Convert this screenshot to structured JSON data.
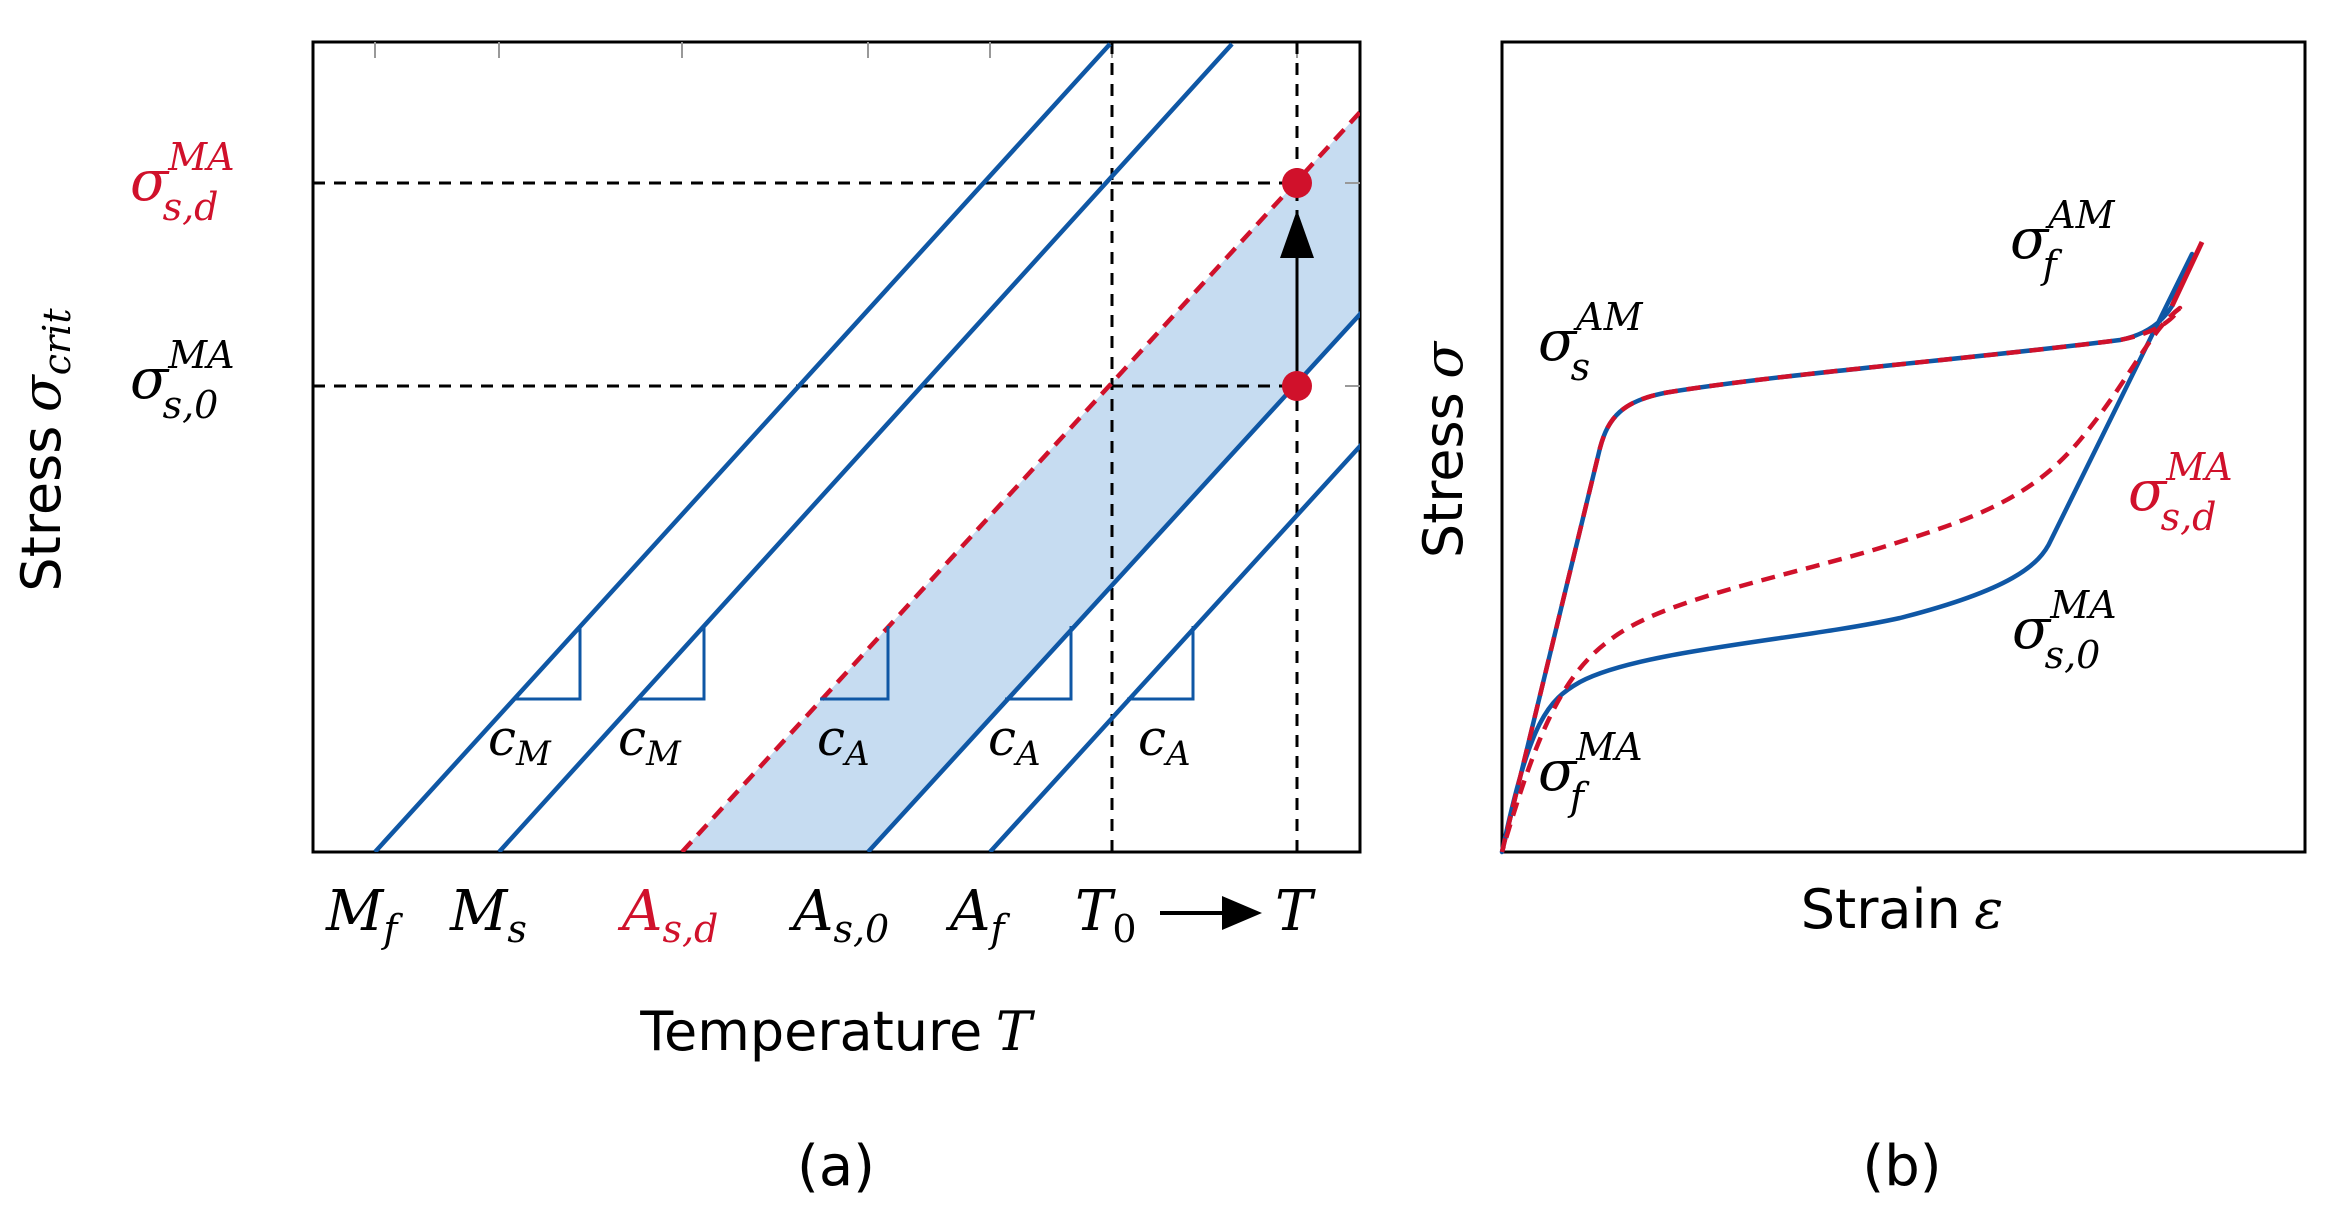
{
  "colors": {
    "blue": "#0f57a5",
    "red": "#d0112b",
    "fill": "#c6dcf1",
    "black": "#000000"
  },
  "panel_a": {
    "caption": "(a)",
    "xlabel_text": "Temperature",
    "xlabel_symbol": "T",
    "ylabel_text": "Stress",
    "ylabel_symbol": "σ",
    "ylabel_sub": "crit",
    "x_ticks": [
      {
        "base": "M",
        "sub": "f",
        "sup": "",
        "color": "black"
      },
      {
        "base": "M",
        "sub": "s",
        "sup": "",
        "color": "black"
      },
      {
        "base": "A",
        "sub": "s,d",
        "sup": "",
        "color": "red"
      },
      {
        "base": "A",
        "sub": "s,0",
        "sup": "",
        "color": "black"
      },
      {
        "base": "A",
        "sub": "f",
        "sup": "",
        "color": "black"
      },
      {
        "base": "T",
        "sub": "0",
        "sup": "",
        "color": "black"
      },
      {
        "base": "T",
        "sub": "",
        "sup": "",
        "color": "black"
      }
    ],
    "y_ticks": [
      {
        "base": "σ",
        "sub": "s,d",
        "sup": "MA",
        "color": "red"
      },
      {
        "base": "σ",
        "sub": "s,0",
        "sup": "MA",
        "color": "black"
      }
    ],
    "slope_labels": [
      {
        "base": "c",
        "sub": "M"
      },
      {
        "base": "c",
        "sub": "M"
      },
      {
        "base": "c",
        "sub": "A"
      },
      {
        "base": "c",
        "sub": "A"
      },
      {
        "base": "c",
        "sub": "A"
      }
    ]
  },
  "panel_b": {
    "caption": "(b)",
    "xlabel_text": "Strain",
    "xlabel_symbol": "ε",
    "ylabel_text": "Stress",
    "ylabel_symbol": "σ",
    "curve_labels": [
      {
        "base": "σ",
        "sub": "s",
        "sup": "AM",
        "color": "black"
      },
      {
        "base": "σ",
        "sub": "f",
        "sup": "AM",
        "color": "black"
      },
      {
        "base": "σ",
        "sub": "s,d",
        "sup": "MA",
        "color": "red"
      },
      {
        "base": "σ",
        "sub": "s,0",
        "sup": "MA",
        "color": "black"
      },
      {
        "base": "σ",
        "sub": "f",
        "sup": "MA",
        "color": "black"
      }
    ]
  }
}
